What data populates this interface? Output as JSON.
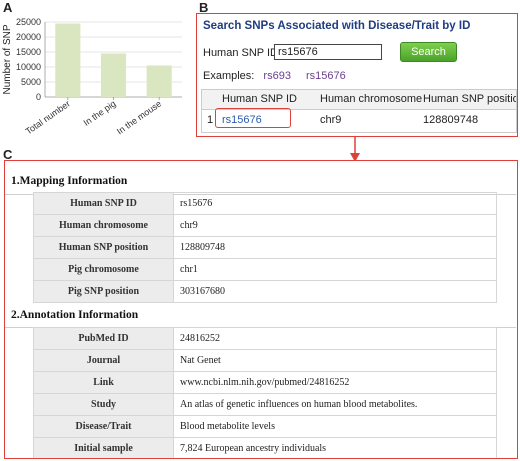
{
  "panel_labels": {
    "a": "A",
    "b": "B",
    "c": "C"
  },
  "chart_data": {
    "type": "bar",
    "categories": [
      "Total number",
      "In the pig",
      "In the mouse"
    ],
    "values": [
      24500,
      14500,
      10500
    ],
    "ylabel": "Number of SNP",
    "xlabel": "",
    "ylim": [
      0,
      25000
    ],
    "yticks": [
      0,
      5000,
      10000,
      15000,
      20000,
      25000
    ],
    "bar_color": "#d9e6bf",
    "grid": true
  },
  "search_panel": {
    "title": "Search SNPs Associated with Disease/Trait by ID",
    "input_label": "Human SNP ID",
    "input_value": "rs15676",
    "search_button": "Search",
    "examples_label": "Examples:",
    "examples": [
      "rs693",
      "rs15676"
    ],
    "table": {
      "headers": [
        "Human SNP ID",
        "Human chromosome",
        "Human SNP position"
      ],
      "rows": [
        {
          "index": "1",
          "snp_id": "rs15676",
          "chromosome": "chr9",
          "position": "128809748"
        }
      ]
    }
  },
  "details_panel": {
    "mapping": {
      "title": "1.Mapping Information",
      "rows": [
        {
          "key": "Human SNP ID",
          "value": "rs15676"
        },
        {
          "key": "Human chromosome",
          "value": "chr9"
        },
        {
          "key": "Human SNP position",
          "value": "128809748"
        },
        {
          "key": "Pig chromosome",
          "value": "chr1"
        },
        {
          "key": "Pig SNP position",
          "value": "303167680"
        }
      ]
    },
    "annotation": {
      "title": "2.Annotation Information",
      "rows": [
        {
          "key": "PubMed ID",
          "value": "24816252"
        },
        {
          "key": "Journal",
          "value": "Nat Genet"
        },
        {
          "key": "Link",
          "value": "www.ncbi.nlm.nih.gov/pubmed/24816252"
        },
        {
          "key": "Study",
          "value": "An atlas of genetic influences on human blood metabolites."
        },
        {
          "key": "Disease/Trait",
          "value": "Blood metabolite levels"
        },
        {
          "key": "Initial sample",
          "value": "7,824 European ancestry individuals"
        }
      ]
    }
  },
  "colors": {
    "frame": "#e0403a",
    "title_blue": "#1f3d80",
    "link_purple": "#6a3f8f",
    "link_blue": "#2c5cae"
  }
}
